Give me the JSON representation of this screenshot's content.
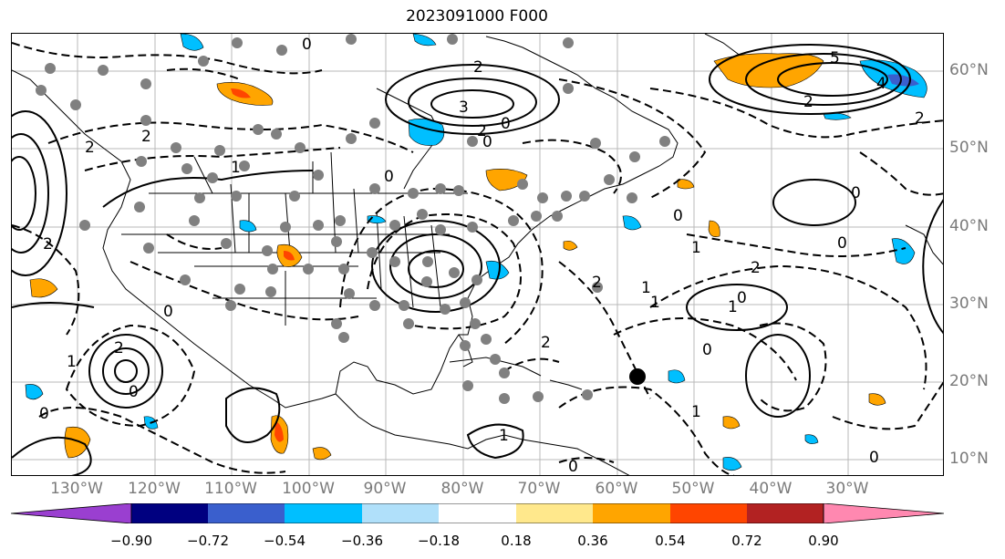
{
  "title": "2023091000 F000",
  "lon_labels": [
    "130°W",
    "120°W",
    "110°W",
    "100°W",
    "90°W",
    "80°W",
    "70°W",
    "60°W",
    "50°W",
    "40°W",
    "30°W"
  ],
  "lat_labels": [
    "60°N",
    "50°N",
    "40°N",
    "30°N",
    "20°N",
    "10°N"
  ],
  "colorbar": {
    "ticks": [
      "−0.90",
      "−0.72",
      "−0.54",
      "−0.36",
      "−0.18",
      "0.18",
      "0.36",
      "0.54",
      "0.72",
      "0.90"
    ],
    "colors": [
      "#9a3fd0",
      "#000080",
      "#3a5fcd",
      "#00bfff",
      "#b0e0fa",
      "#ffffff",
      "#ffe88c",
      "#ffa500",
      "#ff4500",
      "#b22222",
      "#ff88b0"
    ]
  },
  "contour_labels": [
    "0",
    "2",
    "3",
    "2",
    "0",
    "2",
    "1",
    "0",
    "2",
    "0",
    "1",
    "0",
    "1",
    "1",
    "0",
    "2",
    "0",
    "1",
    "0",
    "2",
    "0",
    "0",
    "0",
    "5",
    "4",
    "2",
    "2",
    "2",
    "0",
    "1",
    "0",
    "2",
    "1",
    "2",
    "1",
    "0"
  ],
  "marker": {
    "name": "storm-center",
    "lon": -60,
    "lat": 20.5
  }
}
